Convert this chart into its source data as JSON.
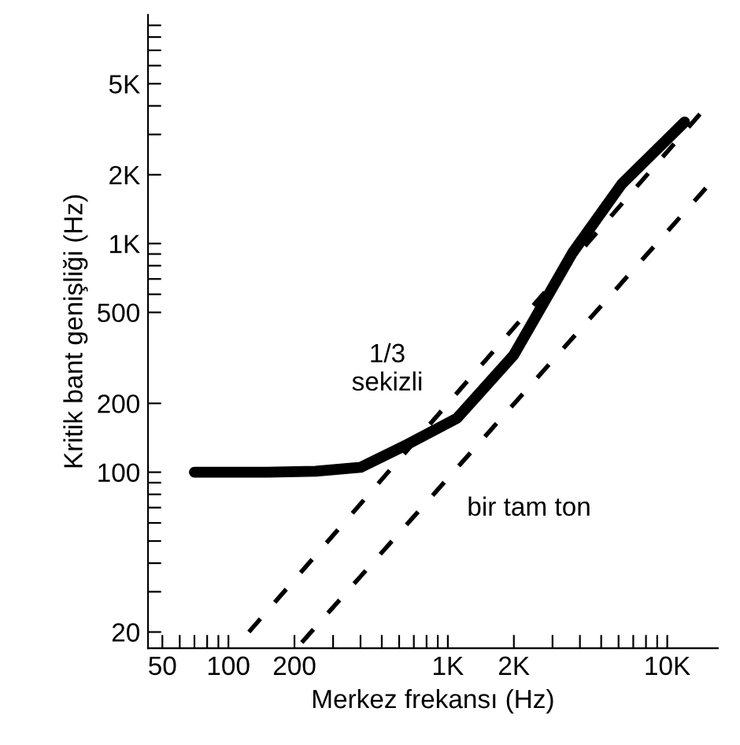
{
  "chart_data": {
    "type": "line",
    "xlabel": "Merkez frekansı (Hz)",
    "ylabel": "Kritik bant genişliği (Hz)",
    "log": "xy",
    "grid": false,
    "legend": false,
    "marker": "none",
    "xlim": [
      43,
      17000
    ],
    "ylim": [
      17,
      10000
    ],
    "xticks": [
      50,
      {
        "value": 60,
        "label": null
      },
      {
        "value": 70,
        "label": null
      },
      {
        "value": 80,
        "label": null
      },
      {
        "value": 90,
        "label": null
      },
      100,
      200,
      {
        "value": 300,
        "label": null
      },
      {
        "value": 400,
        "label": null
      },
      {
        "value": 500,
        "label": null
      },
      {
        "value": 600,
        "label": null
      },
      {
        "value": 700,
        "label": null
      },
      {
        "value": 800,
        "label": null
      },
      {
        "value": 900,
        "label": null
      },
      {
        "value": 1000,
        "label": "1K"
      },
      {
        "value": 2000,
        "label": "2K"
      },
      {
        "value": 3000,
        "label": null
      },
      {
        "value": 4000,
        "label": null
      },
      {
        "value": 5000,
        "label": null
      },
      {
        "value": 6000,
        "label": null
      },
      {
        "value": 7000,
        "label": null
      },
      {
        "value": 8000,
        "label": null
      },
      {
        "value": 9000,
        "label": null
      },
      {
        "value": 10000,
        "label": "10K"
      }
    ],
    "yticks": [
      20,
      {
        "value": 30,
        "label": null
      },
      {
        "value": 40,
        "label": null
      },
      {
        "value": 50,
        "label": null
      },
      {
        "value": 60,
        "label": null
      },
      {
        "value": 70,
        "label": null
      },
      {
        "value": 80,
        "label": null
      },
      {
        "value": 90,
        "label": null
      },
      100,
      200,
      500,
      {
        "value": 600,
        "label": null
      },
      {
        "value": 700,
        "label": null
      },
      {
        "value": 800,
        "label": null
      },
      {
        "value": 900,
        "label": null
      },
      {
        "value": 1000,
        "label": "1K"
      },
      {
        "value": 2000,
        "label": "2K"
      },
      {
        "value": 3000,
        "label": null
      },
      {
        "value": 4000,
        "label": null
      },
      {
        "value": 5000,
        "label": "5K"
      },
      {
        "value": 6000,
        "label": null
      },
      {
        "value": 7000,
        "label": null
      },
      {
        "value": 8000,
        "label": null
      },
      {
        "value": 9000,
        "label": null
      }
    ],
    "series": [
      {
        "line_style": "solid",
        "color": "#000000",
        "x": [
          70,
          150,
          250,
          400,
          640,
          1100,
          2000,
          3700,
          6200,
          12000
        ],
        "values": [
          100,
          100,
          101,
          105,
          131,
          172,
          326,
          910,
          1820,
          3400
        ]
      },
      {
        "line_style": "dashed",
        "color": "#000000",
        "x": [
          124,
          14500
        ],
        "values": [
          20,
          3800
        ]
      },
      {
        "line_style": "dashed",
        "color": "#000000",
        "x": [
          216,
          17000
        ],
        "values": [
          18,
          2000
        ]
      }
    ],
    "annotations": [
      "1/3\nsekizli",
      "bir tam ton"
    ]
  }
}
